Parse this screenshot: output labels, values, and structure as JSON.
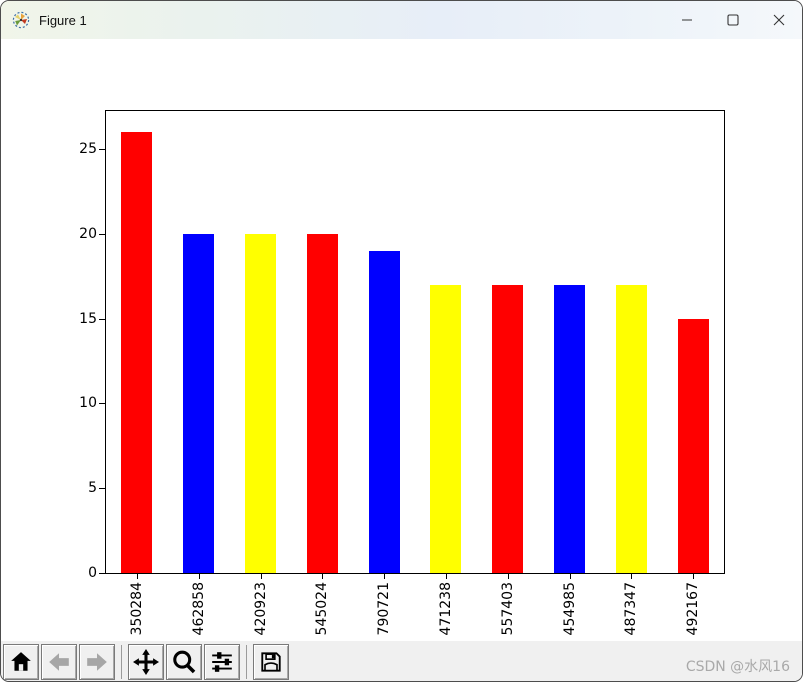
{
  "window": {
    "title": "Figure 1"
  },
  "chart_data": {
    "type": "bar",
    "categories": [
      "350284",
      "462858",
      "420923",
      "545024",
      "790721",
      "471238",
      "557403",
      "454985",
      "487347",
      "492167"
    ],
    "values": [
      26,
      20,
      20,
      20,
      19,
      17,
      17,
      17,
      17,
      15
    ],
    "bar_colors": [
      "#ff0000",
      "#0000ff",
      "#ffff00",
      "#ff0000",
      "#0000ff",
      "#ffff00",
      "#ff0000",
      "#0000ff",
      "#ffff00",
      "#ff0000"
    ],
    "title": "",
    "xlabel": "",
    "ylabel": "",
    "ylim": [
      0,
      27.25
    ],
    "yticks": [
      0,
      5,
      10,
      15,
      20,
      25
    ],
    "xtick_rotation": 90,
    "grid": false,
    "legend": false,
    "bar_width_ratio": 0.5
  },
  "toolbar": {
    "icons": [
      {
        "name": "home-icon",
        "action": "home",
        "enabled": true
      },
      {
        "name": "arrow-left-icon",
        "action": "back",
        "enabled": false
      },
      {
        "name": "arrow-right-icon",
        "action": "forward",
        "enabled": false
      },
      {
        "name": "pan-move-icon",
        "action": "pan",
        "enabled": true
      },
      {
        "name": "magnifier-icon",
        "action": "zoom",
        "enabled": true
      },
      {
        "name": "sliders-icon",
        "action": "configure-subplots",
        "enabled": true
      },
      {
        "name": "floppy-disk-icon",
        "action": "save",
        "enabled": true
      }
    ]
  },
  "watermark": "CSDN @水风16",
  "colors": {
    "bar_red": "#ff0000",
    "bar_blue": "#0000ff",
    "bar_yellow": "#ffff00",
    "toolbar_bg": "#f0f0f0",
    "spine": "#000000",
    "watermark": "#a9a9a9"
  }
}
